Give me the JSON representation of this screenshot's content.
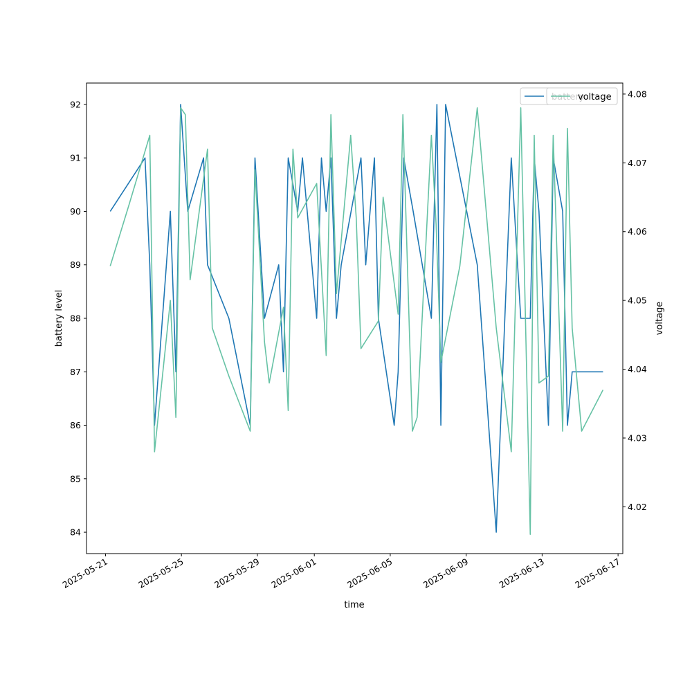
{
  "chart_data": {
    "type": "line",
    "xlabel": "time",
    "ylabel": "battery level",
    "y2label": "voltage",
    "xlim": [
      "2025-05-20T00:00",
      "2025-06-17T06:00"
    ],
    "ylim": [
      83.6,
      92.4
    ],
    "y2lim": [
      4.0132,
      4.0816
    ],
    "x_ticks": [
      "2025-05-21",
      "2025-05-25",
      "2025-05-29",
      "2025-06-01",
      "2025-06-05",
      "2025-06-09",
      "2025-06-13",
      "2025-06-17"
    ],
    "y_ticks": [
      84,
      85,
      86,
      87,
      88,
      89,
      90,
      91,
      92
    ],
    "y2_ticks": [
      4.02,
      4.03,
      4.04,
      4.05,
      4.06,
      4.07,
      4.08
    ],
    "legend": {
      "placement": "upper right",
      "entries": [
        "battery",
        "voltage"
      ]
    },
    "series": [
      {
        "name": "battery",
        "axis": "left",
        "color": "#1f77b4",
        "x": [
          "2025-05-21T06:00",
          "2025-05-23T02:00",
          "2025-05-23T08:00",
          "2025-05-23T14:00",
          "2025-05-24T10:00",
          "2025-05-24T17:00",
          "2025-05-24T23:00",
          "2025-05-25T08:00",
          "2025-05-26T04:00",
          "2025-05-26T09:00",
          "2025-05-27T12:00",
          "2025-05-28T15:00",
          "2025-05-28T21:00",
          "2025-05-29T09:00",
          "2025-05-30T03:00",
          "2025-05-30T09:00",
          "2025-05-30T15:00",
          "2025-05-31T03:00",
          "2025-05-31T09:00",
          "2025-06-01T03:00",
          "2025-06-01T09:00",
          "2025-06-01T15:00",
          "2025-06-01T21:00",
          "2025-06-02T04:00",
          "2025-06-02T10:00",
          "2025-06-03T11:00",
          "2025-06-03T17:00",
          "2025-06-04T04:00",
          "2025-06-04T09:00",
          "2025-06-05T05:00",
          "2025-06-05T10:00",
          "2025-06-05T17:00",
          "2025-06-06T05:00",
          "2025-06-07T04:00",
          "2025-06-07T11:00",
          "2025-06-07T16:00",
          "2025-06-07T22:00",
          "2025-06-09T14:00",
          "2025-06-10T14:00",
          "2025-06-11T09:00",
          "2025-06-11T21:00",
          "2025-06-12T09:00",
          "2025-06-12T14:00",
          "2025-06-12T20:00",
          "2025-06-13T08:00",
          "2025-06-13T14:00",
          "2025-06-14T02:00",
          "2025-06-14T08:00",
          "2025-06-14T14:00",
          "2025-06-15T02:00",
          "2025-06-16T05:00"
        ],
        "values": [
          90,
          91,
          89,
          86,
          90,
          87,
          92,
          90,
          91,
          89,
          88,
          86,
          91,
          88,
          89,
          87,
          91,
          90,
          91,
          88,
          91,
          90,
          91,
          88,
          89,
          91,
          89,
          91,
          88,
          86,
          87,
          91,
          90,
          88,
          92,
          86,
          92,
          89,
          84,
          91,
          88,
          88,
          91,
          90,
          86,
          91,
          90,
          86,
          87,
          87,
          87
        ]
      },
      {
        "name": "voltage",
        "axis": "right",
        "color": "#66c2a5",
        "x": [
          "2025-05-21T06:00",
          "2025-05-22T06:00",
          "2025-05-23T08:00",
          "2025-05-23T14:00",
          "2025-05-24T10:00",
          "2025-05-24T17:00",
          "2025-05-24T23:00",
          "2025-05-25T05:00",
          "2025-05-25T11:00",
          "2025-05-26T09:00",
          "2025-05-26T15:00",
          "2025-05-27T12:00",
          "2025-05-28T15:00",
          "2025-05-28T21:00",
          "2025-05-29T09:00",
          "2025-05-29T15:00",
          "2025-05-30T09:00",
          "2025-05-30T15:00",
          "2025-05-30T21:00",
          "2025-05-31T03:00",
          "2025-06-01T03:00",
          "2025-06-01T15:00",
          "2025-06-01T21:00",
          "2025-06-02T04:00",
          "2025-06-02T22:00",
          "2025-06-03T05:00",
          "2025-06-03T11:00",
          "2025-06-04T09:00",
          "2025-06-04T15:00",
          "2025-06-05T10:00",
          "2025-06-05T16:00",
          "2025-06-06T04:00",
          "2025-06-06T10:00",
          "2025-06-07T04:00",
          "2025-06-07T10:00",
          "2025-06-07T16:00",
          "2025-06-08T16:00",
          "2025-06-09T14:00",
          "2025-06-10T14:00",
          "2025-06-11T09:00",
          "2025-06-11T21:00",
          "2025-06-12T09:00",
          "2025-06-12T14:00",
          "2025-06-12T20:00",
          "2025-06-13T08:00",
          "2025-06-13T14:00",
          "2025-06-14T02:00",
          "2025-06-14T08:00",
          "2025-06-14T14:00",
          "2025-06-15T02:00",
          "2025-06-16T05:00"
        ],
        "values": [
          4.055,
          4.064,
          4.074,
          4.028,
          4.05,
          4.033,
          4.078,
          4.077,
          4.053,
          4.072,
          4.046,
          4.039,
          4.031,
          4.069,
          4.044,
          4.038,
          4.049,
          4.034,
          4.072,
          4.062,
          4.067,
          4.042,
          4.077,
          4.051,
          4.074,
          4.062,
          4.043,
          4.047,
          4.065,
          4.048,
          4.077,
          4.031,
          4.033,
          4.074,
          4.061,
          4.041,
          4.055,
          4.078,
          4.046,
          4.028,
          4.078,
          4.016,
          4.074,
          4.038,
          4.039,
          4.074,
          4.031,
          4.075,
          4.046,
          4.031,
          4.037
        ]
      }
    ]
  }
}
